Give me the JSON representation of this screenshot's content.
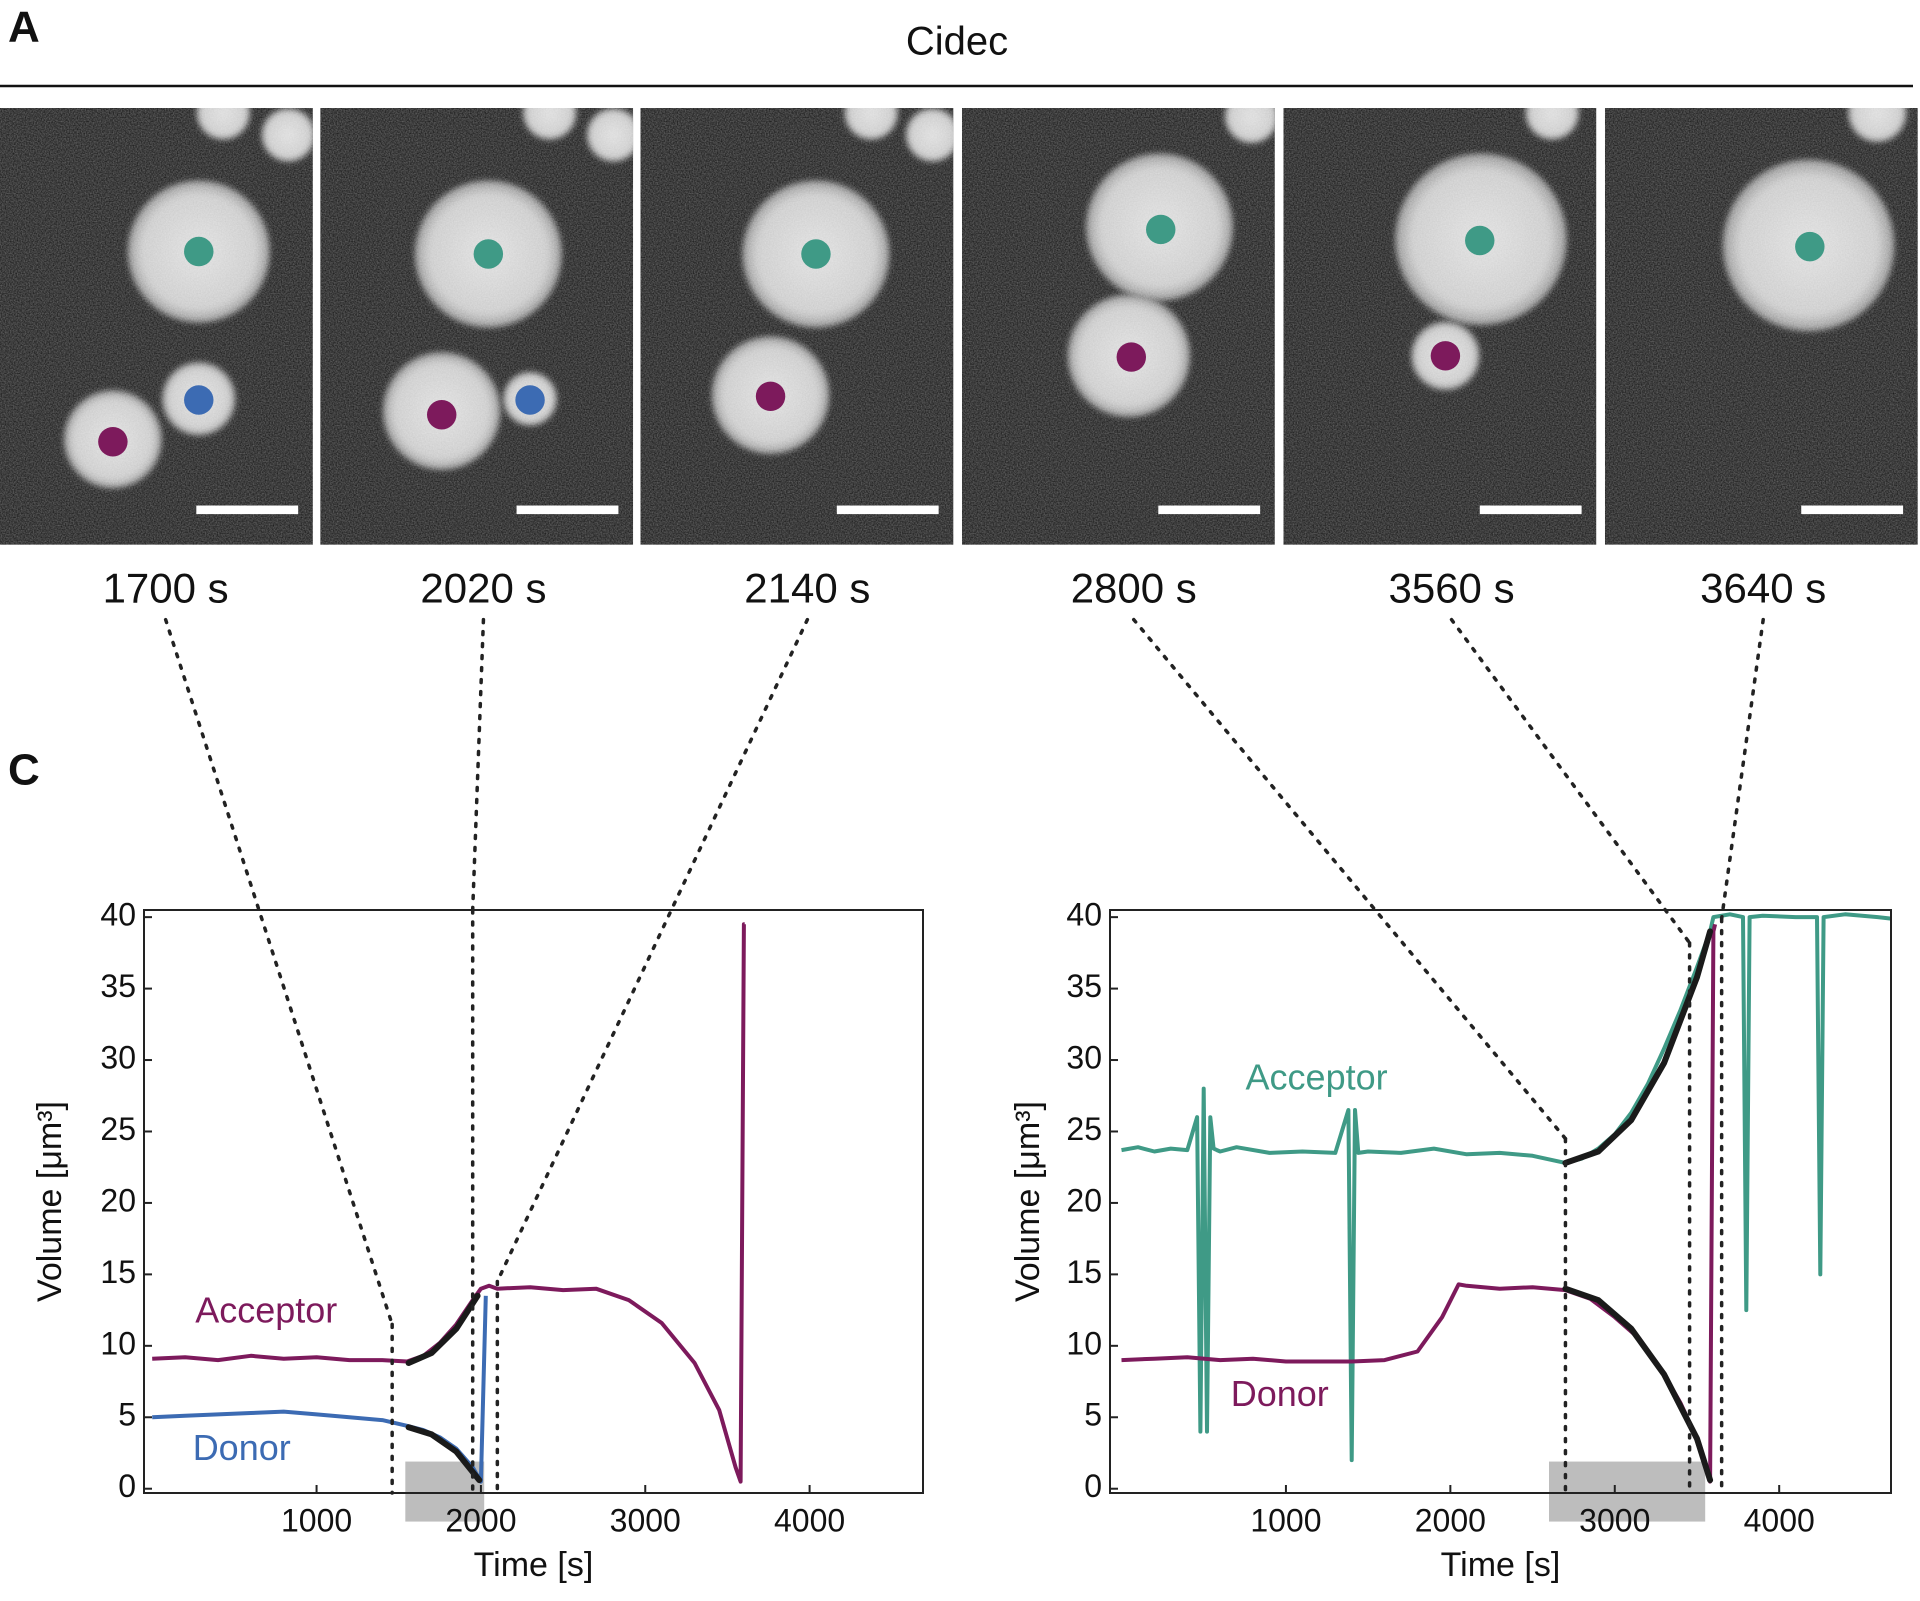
{
  "panel_labels": [
    "A",
    "C"
  ],
  "title": "Cidec",
  "time_labels": [
    "1700 s",
    "2020 s",
    "2140 s",
    "2800 s",
    "3560 s",
    "3640 s"
  ],
  "chart_data": [
    {
      "type": "line",
      "xlabel": "Time [s]",
      "ylabel": "Volume [μm³]",
      "xlim": [
        -50,
        4690
      ],
      "ylim": [
        -0.3,
        40.5
      ],
      "xticks": [
        1000,
        2000,
        3000,
        4000
      ],
      "yticks": [
        0,
        5,
        10,
        15,
        20,
        25,
        30,
        35,
        40
      ],
      "series": [
        {
          "name": "Acceptor",
          "color": "#7d1a5c",
          "x": [
            0,
            200,
            400,
            600,
            800,
            1000,
            1200,
            1400,
            1550,
            1650,
            1750,
            1850,
            1950,
            2000,
            2050,
            2100,
            2300,
            2500,
            2700,
            2900,
            3100,
            3300,
            3450,
            3550,
            3580,
            3600,
            3605
          ],
          "values": [
            9.1,
            9.2,
            9,
            9.3,
            9.1,
            9.2,
            9,
            9,
            8.9,
            9.3,
            10.2,
            11.5,
            13.2,
            14,
            14.2,
            14,
            14.1,
            13.9,
            14,
            13.2,
            11.6,
            8.8,
            5.5,
            1.5,
            0.5,
            39.5,
            39.5
          ]
        },
        {
          "name": "Donor",
          "color": "#3c6bb3",
          "x": [
            0,
            200,
            400,
            600,
            800,
            1000,
            1200,
            1400,
            1550,
            1650,
            1750,
            1850,
            1950,
            2000,
            2030
          ],
          "values": [
            5,
            5.1,
            5.2,
            5.3,
            5.4,
            5.2,
            5,
            4.8,
            4.4,
            4.1,
            3.6,
            2.8,
            1.5,
            0.5,
            13.5
          ]
        }
      ],
      "fits": [
        {
          "color": "#1a1a1a",
          "x": [
            1560,
            1700,
            1850,
            1980
          ],
          "values": [
            8.8,
            9.5,
            11.2,
            13.5
          ]
        },
        {
          "color": "#1a1a1a",
          "x": [
            1560,
            1700,
            1850,
            1990
          ],
          "values": [
            4.3,
            3.8,
            2.6,
            0.6
          ]
        }
      ],
      "span": {
        "x": [
          1540,
          2020
        ],
        "y": [
          -2.3,
          1.9
        ]
      },
      "guides": [
        {
          "x": 1460,
          "y": 11.5
        },
        {
          "x": 1950,
          "y": 40.5
        },
        {
          "x": 2100,
          "y": 14.5
        }
      ]
    },
    {
      "type": "line",
      "xlabel": "Time [s]",
      "ylabel": "Volume [μm³]",
      "xlim": [
        -70,
        4680
      ],
      "ylim": [
        -0.3,
        40.5
      ],
      "xticks": [
        1000,
        2000,
        3000,
        4000
      ],
      "yticks": [
        0,
        5,
        10,
        15,
        20,
        25,
        30,
        35,
        40
      ],
      "series": [
        {
          "name": "Acceptor",
          "color": "#3f9a86",
          "x": [
            0,
            100,
            200,
            300,
            400,
            460,
            480,
            500,
            520,
            540,
            560,
            580,
            600,
            700,
            900,
            1100,
            1300,
            1380,
            1400,
            1420,
            1440,
            1500,
            1700,
            1900,
            2100,
            2300,
            2500,
            2700,
            2800,
            2900,
            3000,
            3100,
            3200,
            3300,
            3400,
            3500,
            3580,
            3600,
            3700,
            3780,
            3800,
            3820,
            3900,
            4100,
            4230,
            4250,
            4270,
            4400,
            4600,
            4680
          ],
          "values": [
            23.7,
            23.9,
            23.6,
            23.8,
            23.7,
            26,
            4,
            28,
            4,
            26,
            23.8,
            23.7,
            23.6,
            23.9,
            23.5,
            23.6,
            23.5,
            26.5,
            2,
            26.5,
            23.5,
            23.6,
            23.5,
            23.8,
            23.4,
            23.5,
            23.3,
            22.8,
            23.1,
            23.8,
            24.8,
            26.3,
            28.3,
            30.8,
            33.5,
            36.5,
            39,
            40,
            40.2,
            40,
            12.5,
            40,
            40.1,
            40,
            40,
            15,
            40,
            40.2,
            40,
            39.9
          ]
        },
        {
          "name": "Donor",
          "color": "#7d1a5c",
          "x": [
            0,
            200,
            400,
            600,
            800,
            1000,
            1200,
            1400,
            1600,
            1800,
            1950,
            2050,
            2100,
            2300,
            2500,
            2700,
            2850,
            3000,
            3150,
            3300,
            3400,
            3500,
            3560,
            3580,
            3600,
            3610
          ],
          "values": [
            9,
            9.1,
            9.2,
            9,
            9.1,
            8.9,
            8.9,
            8.9,
            9,
            9.6,
            12,
            14.3,
            14.2,
            14,
            14.1,
            13.9,
            13.3,
            12,
            10.5,
            8,
            6,
            3.5,
            1.5,
            0.5,
            39,
            39.5
          ]
        }
      ],
      "fits": [
        {
          "color": "#1a1a1a",
          "x": [
            2700,
            2900,
            3100,
            3300,
            3500,
            3580
          ],
          "values": [
            22.8,
            23.6,
            25.8,
            29.8,
            35.8,
            39
          ]
        },
        {
          "color": "#1a1a1a",
          "x": [
            2700,
            2900,
            3100,
            3300,
            3500,
            3580
          ],
          "values": [
            14,
            13.2,
            11.2,
            8,
            3.5,
            0.6
          ]
        }
      ],
      "span": {
        "x": [
          2600,
          3550
        ],
        "y": [
          -2.3,
          1.9
        ]
      },
      "guides": [
        {
          "x": 2700,
          "y": 24.5
        },
        {
          "x": 3455,
          "y": 38.2
        },
        {
          "x": 3650,
          "y": 39.9
        }
      ]
    }
  ]
}
